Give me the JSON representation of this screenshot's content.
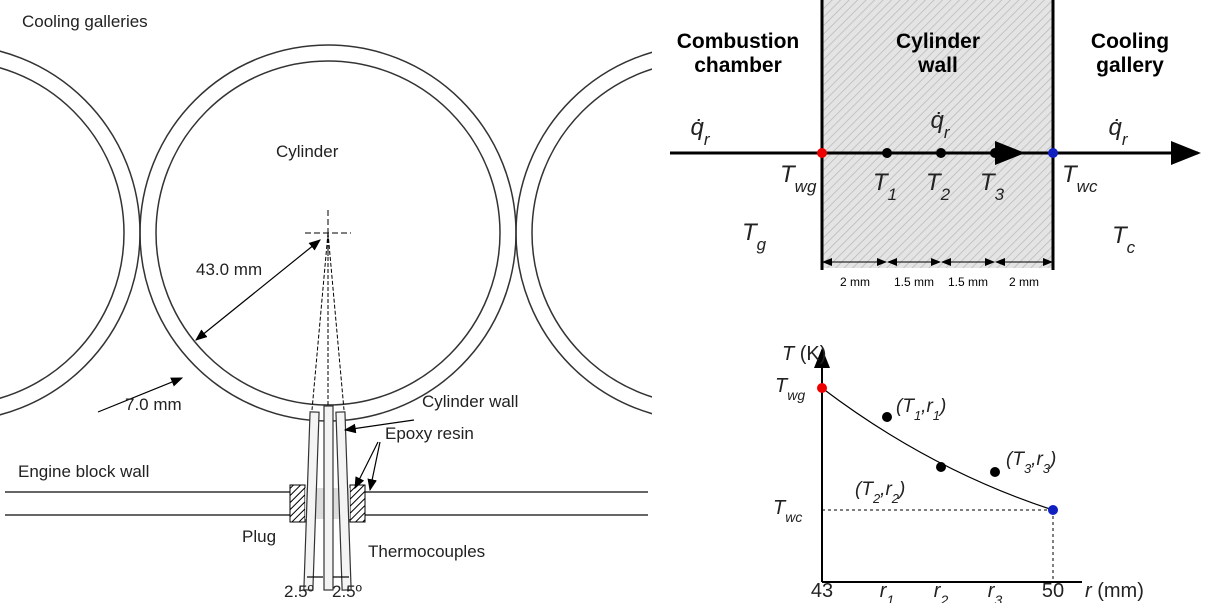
{
  "left": {
    "cooling_galleries": "Cooling galleries",
    "cylinder": "Cylinder",
    "radius": "43.0 mm",
    "thickness": "7.0 mm",
    "cylinder_wall": "Cylinder wall",
    "engine_block_wall": "Engine block wall",
    "epoxy_resin": "Epoxy resin",
    "plug": "Plug",
    "thermocouples": "Thermocouples",
    "angle_left": "2.5º",
    "angle_right": "2.5º"
  },
  "top": {
    "regions": [
      [
        "Combustion",
        "chamber"
      ],
      [
        "Cylinder",
        "wall"
      ],
      [
        "Cooling",
        "gallery"
      ]
    ],
    "heat_flux": [
      [
        {
          "text": "q̇"
        },
        {
          "text": "r",
          "sub": true
        }
      ],
      [
        {
          "text": "q̇"
        },
        {
          "text": "r",
          "sub": true
        }
      ],
      [
        {
          "text": "q̇"
        },
        {
          "text": "r",
          "sub": true
        }
      ]
    ],
    "temperatures": [
      [
        {
          "text": "T"
        },
        {
          "text": "wg",
          "sub": true
        }
      ],
      [
        {
          "text": "T"
        },
        {
          "text": "1",
          "sub": true
        }
      ],
      [
        {
          "text": "T"
        },
        {
          "text": "2",
          "sub": true
        }
      ],
      [
        {
          "text": "T"
        },
        {
          "text": "3",
          "sub": true
        }
      ],
      [
        {
          "text": "T"
        },
        {
          "text": "wc",
          "sub": true
        }
      ]
    ],
    "gas": [
      {
        "text": "T"
      },
      {
        "text": "g",
        "sub": true
      }
    ],
    "coolant": [
      {
        "text": "T"
      },
      {
        "text": "c",
        "sub": true
      }
    ],
    "spacings": [
      "2 mm",
      "1.5 mm",
      "1.5 mm",
      "2 mm"
    ]
  },
  "plot": {
    "y_label": [
      {
        "text": "T"
      },
      {
        "text": " (K)",
        "upright": true
      }
    ],
    "x_label": [
      {
        "text": "r"
      },
      {
        "text": " (mm)",
        "upright": true
      }
    ],
    "y_ticks": [
      [
        {
          "text": "T"
        },
        {
          "text": "wg",
          "sub": true
        }
      ],
      [
        {
          "text": "T"
        },
        {
          "text": "wc",
          "sub": true
        }
      ]
    ],
    "x_ticks": [
      [
        {
          "text": "43",
          "upright": true
        }
      ],
      [
        {
          "text": "r"
        },
        {
          "text": "1",
          "sub": true
        }
      ],
      [
        {
          "text": "r"
        },
        {
          "text": "2",
          "sub": true
        }
      ],
      [
        {
          "text": "r"
        },
        {
          "text": "3",
          "sub": true
        }
      ],
      [
        {
          "text": "50",
          "upright": true
        }
      ]
    ],
    "points": [
      [
        {
          "text": "(T"
        },
        {
          "text": "1",
          "sub": true
        },
        {
          "text": ",r"
        },
        {
          "text": "1",
          "sub": true
        },
        {
          "text": ")"
        }
      ],
      [
        {
          "text": "(T"
        },
        {
          "text": "2",
          "sub": true
        },
        {
          "text": ",r"
        },
        {
          "text": "2",
          "sub": true
        },
        {
          "text": ")"
        }
      ],
      [
        {
          "text": "(T"
        },
        {
          "text": "3",
          "sub": true
        },
        {
          "text": ",r"
        },
        {
          "text": "3",
          "sub": true
        },
        {
          "text": ")"
        }
      ]
    ]
  }
}
